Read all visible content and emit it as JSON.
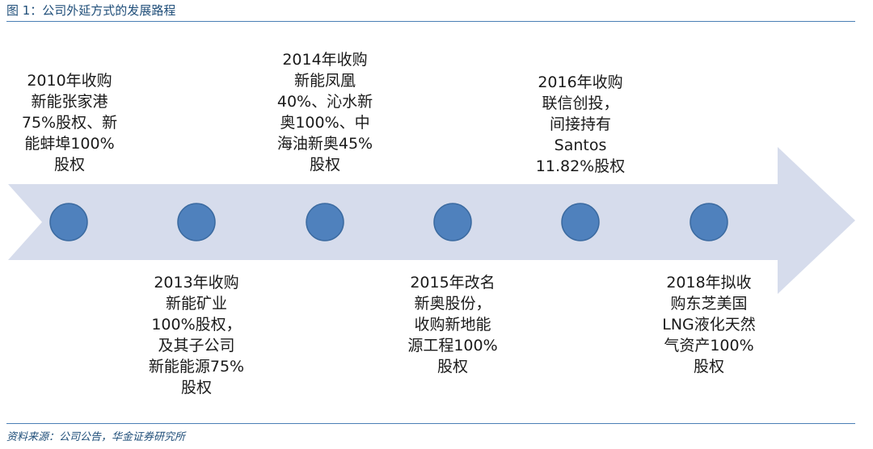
{
  "figure": {
    "title": "图 1：公司外延方式的发展路程",
    "source": "资料来源：公司公告，华金证券研究所"
  },
  "colors": {
    "arrow": "#d6dcec",
    "node": "#4f81bd",
    "node_border": "#3b6aa0",
    "rule": "#4a7fb5",
    "title_text": "#1f4e79"
  },
  "events": [
    {
      "id": "2010",
      "text": "2010年收购\n新能张家港\n75%股权、新\n能蚌埠100%\n股权"
    },
    {
      "id": "2013",
      "text": "2013年收购\n新能矿业\n100%股权，\n及其子公司\n新能能源75%\n股权"
    },
    {
      "id": "2014",
      "text": "2014年收购\n新能凤凰\n40%、沁水新\n奥100%、中\n海油新奥45%\n股权"
    },
    {
      "id": "2015",
      "text": "2015年改名\n新奥股份，\n收购新地能\n源工程100%\n股权"
    },
    {
      "id": "2016",
      "text": "2016年收购\n联信创投，\n间接持有\nSantos\n11.82%股权"
    },
    {
      "id": "2018",
      "text": "2018年拟收\n购东芝美国\nLNG液化天然\n气资产100%\n股权"
    }
  ]
}
